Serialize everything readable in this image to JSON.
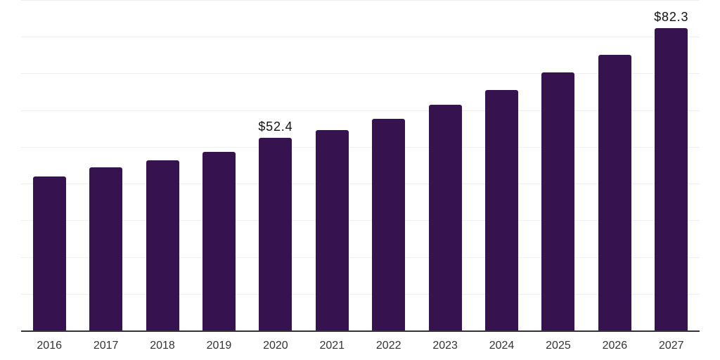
{
  "chart_data": {
    "type": "bar",
    "title": "",
    "xlabel": "",
    "ylabel": "",
    "categories": [
      "2016",
      "2017",
      "2018",
      "2019",
      "2020",
      "2021",
      "2022",
      "2023",
      "2024",
      "2025",
      "2026",
      "2027"
    ],
    "values": [
      42.0,
      44.4,
      46.3,
      48.7,
      52.4,
      54.5,
      57.7,
      61.5,
      65.4,
      70.2,
      75.1,
      82.3
    ],
    "data_labels": [
      null,
      null,
      null,
      null,
      "$52.4",
      null,
      null,
      null,
      null,
      null,
      null,
      "$82.3"
    ],
    "ylim": [
      0,
      90
    ],
    "gridline_step": 10,
    "grid": true,
    "legend": false,
    "layout_hints": {
      "bars_rounded_top": true,
      "labels_shown_only_for": [
        "2020",
        "2027"
      ]
    },
    "colors": {
      "bar": "#36124e",
      "axis_line": "#333333",
      "gridline": "#f0f0f0",
      "tick_label": "#333333",
      "data_label": "#111111",
      "background": "#ffffff"
    }
  }
}
